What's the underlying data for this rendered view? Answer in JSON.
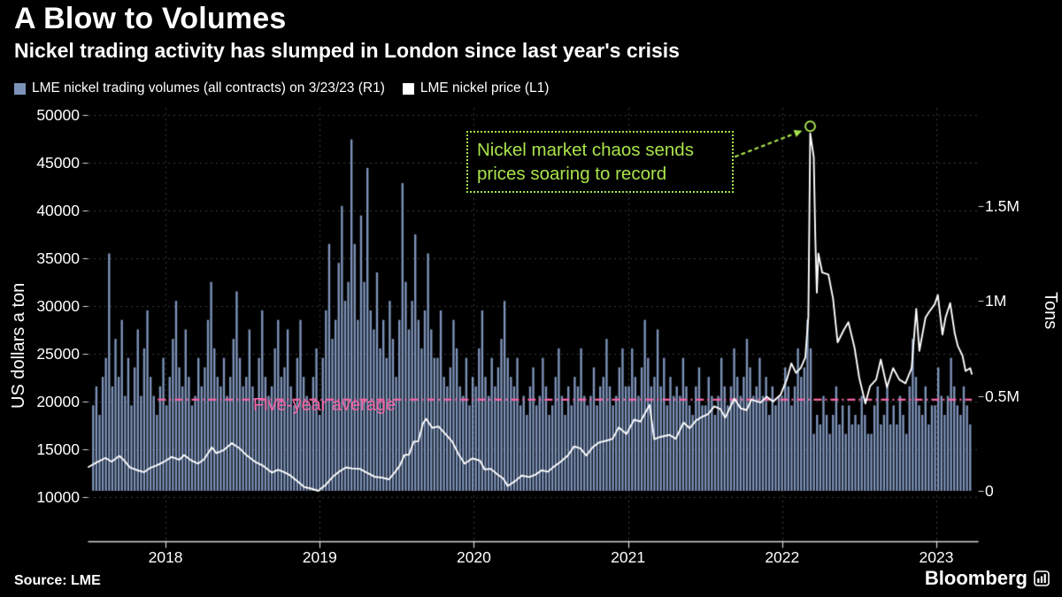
{
  "page": {
    "title": "A Blow to Volumes",
    "subtitle": "Nickel trading activity has slumped in London since last year's crisis",
    "source": "Source: LME",
    "brand": "Bloomberg"
  },
  "legend": {
    "items": [
      {
        "label": "LME nickel trading volumes (all contracts) on 3/23/23 (R1)",
        "color": "#7C92B8"
      },
      {
        "label": "LME nickel price (L1)",
        "color": "#FFFFFF"
      }
    ]
  },
  "annotation": {
    "line1": "Nickel market chaos sends",
    "line2": "prices soaring to record"
  },
  "colors": {
    "background": "#000000",
    "bars": "#7C92B8",
    "price_line": "#FFFFFF",
    "grid": "#3B3B3B",
    "axis": "#D8D8D8",
    "text": "#FFFFFF",
    "pink": "#F565A5",
    "green": "#A9E34B"
  },
  "chart_data": {
    "type": "bar+line",
    "title": "A Blow to Volumes",
    "subtitle": "Nickel trading activity has slumped in London since last year's crisis",
    "left_axis": {
      "label": "US dollars a ton",
      "ticks": [
        10000,
        15000,
        20000,
        25000,
        30000,
        35000,
        40000,
        45000,
        50000
      ]
    },
    "right_axis": {
      "label": "Tons",
      "ticks_mtons": [
        0,
        0.5,
        1.0,
        1.5
      ],
      "tick_labels": [
        "0",
        "0.5M",
        "1M",
        "1.5M"
      ]
    },
    "x_axis": {
      "start": 2017.5,
      "end": 2023.27,
      "year_ticks": [
        2018,
        2019,
        2020,
        2021,
        2022,
        2023
      ]
    },
    "price_line": {
      "name": "LME nickel price (L1)",
      "axis": "left",
      "units": "US dollars a ton",
      "points": [
        [
          2017.5,
          13150
        ],
        [
          2017.55,
          13600
        ],
        [
          2017.61,
          14100
        ],
        [
          2017.65,
          13700
        ],
        [
          2017.7,
          14300
        ],
        [
          2017.73,
          13850
        ],
        [
          2017.77,
          13100
        ],
        [
          2017.81,
          12850
        ],
        [
          2017.86,
          12600
        ],
        [
          2017.9,
          13050
        ],
        [
          2017.94,
          13300
        ],
        [
          2017.99,
          13700
        ],
        [
          2018.04,
          14200
        ],
        [
          2018.09,
          13900
        ],
        [
          2018.12,
          14400
        ],
        [
          2018.17,
          13800
        ],
        [
          2018.21,
          13500
        ],
        [
          2018.25,
          13950
        ],
        [
          2018.3,
          15200
        ],
        [
          2018.33,
          14600
        ],
        [
          2018.38,
          14950
        ],
        [
          2018.43,
          15650
        ],
        [
          2018.48,
          15100
        ],
        [
          2018.52,
          14450
        ],
        [
          2018.58,
          13700
        ],
        [
          2018.63,
          13300
        ],
        [
          2018.69,
          12550
        ],
        [
          2018.73,
          12850
        ],
        [
          2018.77,
          12600
        ],
        [
          2018.81,
          12250
        ],
        [
          2018.86,
          11600
        ],
        [
          2018.9,
          11050
        ],
        [
          2018.94,
          10900
        ],
        [
          2018.99,
          10650
        ],
        [
          2019.04,
          11300
        ],
        [
          2019.09,
          12200
        ],
        [
          2019.13,
          12700
        ],
        [
          2019.17,
          13100
        ],
        [
          2019.21,
          13000
        ],
        [
          2019.26,
          12950
        ],
        [
          2019.3,
          12600
        ],
        [
          2019.36,
          12100
        ],
        [
          2019.4,
          12050
        ],
        [
          2019.45,
          11850
        ],
        [
          2019.49,
          12650
        ],
        [
          2019.52,
          13300
        ],
        [
          2019.55,
          14400
        ],
        [
          2019.58,
          14450
        ],
        [
          2019.61,
          15800
        ],
        [
          2019.64,
          15850
        ],
        [
          2019.67,
          17700
        ],
        [
          2019.69,
          18200
        ],
        [
          2019.73,
          17250
        ],
        [
          2019.77,
          17400
        ],
        [
          2019.81,
          16700
        ],
        [
          2019.86,
          15800
        ],
        [
          2019.9,
          14500
        ],
        [
          2019.94,
          13500
        ],
        [
          2019.99,
          14050
        ],
        [
          2020.04,
          13800
        ],
        [
          2020.07,
          12900
        ],
        [
          2020.11,
          12950
        ],
        [
          2020.15,
          12400
        ],
        [
          2020.19,
          11950
        ],
        [
          2020.22,
          11150
        ],
        [
          2020.27,
          11700
        ],
        [
          2020.31,
          12250
        ],
        [
          2020.36,
          12100
        ],
        [
          2020.4,
          12350
        ],
        [
          2020.44,
          12800
        ],
        [
          2020.48,
          12650
        ],
        [
          2020.52,
          13200
        ],
        [
          2020.56,
          13650
        ],
        [
          2020.61,
          14350
        ],
        [
          2020.65,
          15300
        ],
        [
          2020.69,
          15100
        ],
        [
          2020.73,
          14350
        ],
        [
          2020.77,
          15200
        ],
        [
          2020.81,
          15700
        ],
        [
          2020.86,
          15900
        ],
        [
          2020.9,
          16100
        ],
        [
          2020.94,
          17300
        ],
        [
          2020.99,
          16600
        ],
        [
          2021.04,
          18100
        ],
        [
          2021.08,
          17900
        ],
        [
          2021.14,
          19650
        ],
        [
          2021.17,
          16050
        ],
        [
          2021.21,
          16300
        ],
        [
          2021.27,
          16500
        ],
        [
          2021.31,
          16100
        ],
        [
          2021.36,
          17800
        ],
        [
          2021.4,
          17200
        ],
        [
          2021.44,
          18000
        ],
        [
          2021.48,
          18400
        ],
        [
          2021.52,
          18700
        ],
        [
          2021.56,
          19500
        ],
        [
          2021.6,
          19200
        ],
        [
          2021.63,
          18300
        ],
        [
          2021.69,
          20300
        ],
        [
          2021.73,
          19300
        ],
        [
          2021.77,
          19100
        ],
        [
          2021.8,
          20200
        ],
        [
          2021.86,
          19900
        ],
        [
          2021.9,
          20500
        ],
        [
          2021.94,
          20000
        ],
        [
          2021.99,
          20700
        ],
        [
          2022.03,
          22300
        ],
        [
          2022.06,
          24000
        ],
        [
          2022.09,
          23000
        ],
        [
          2022.12,
          23500
        ],
        [
          2022.15,
          24600
        ],
        [
          2022.17,
          28900
        ],
        [
          2022.182,
          48078
        ],
        [
          2022.205,
          45600
        ],
        [
          2022.215,
          37200
        ],
        [
          2022.225,
          31400
        ],
        [
          2022.235,
          35500
        ],
        [
          2022.26,
          33500
        ],
        [
          2022.3,
          33300
        ],
        [
          2022.33,
          30800
        ],
        [
          2022.36,
          26200
        ],
        [
          2022.4,
          27500
        ],
        [
          2022.43,
          28300
        ],
        [
          2022.47,
          25600
        ],
        [
          2022.5,
          22500
        ],
        [
          2022.54,
          19800
        ],
        [
          2022.57,
          21600
        ],
        [
          2022.61,
          22300
        ],
        [
          2022.64,
          24400
        ],
        [
          2022.68,
          21500
        ],
        [
          2022.72,
          23500
        ],
        [
          2022.76,
          22300
        ],
        [
          2022.8,
          21900
        ],
        [
          2022.84,
          23500
        ],
        [
          2022.87,
          29700
        ],
        [
          2022.89,
          25300
        ],
        [
          2022.93,
          28800
        ],
        [
          2022.95,
          29300
        ],
        [
          2022.99,
          30200
        ],
        [
          2023.01,
          31150
        ],
        [
          2023.04,
          27000
        ],
        [
          2023.06,
          28800
        ],
        [
          2023.09,
          30300
        ],
        [
          2023.12,
          27100
        ],
        [
          2023.14,
          25800
        ],
        [
          2023.17,
          24800
        ],
        [
          2023.19,
          23200
        ],
        [
          2023.22,
          23500
        ],
        [
          2023.23,
          22900
        ]
      ]
    },
    "volume_bars": {
      "name": "LME nickel trading volumes (all contracts) on 3/23/23 (R1)",
      "axis": "right",
      "units": "million tons",
      "t_start": 2017.52,
      "t_end": 2023.23,
      "mtons": [
        0.45,
        0.55,
        0.4,
        0.6,
        0.7,
        1.25,
        0.55,
        0.8,
        0.6,
        0.9,
        0.5,
        0.7,
        0.45,
        0.65,
        0.85,
        0.5,
        0.75,
        0.95,
        0.6,
        0.5,
        0.4,
        0.55,
        0.7,
        0.45,
        0.6,
        0.8,
        1.0,
        0.65,
        0.55,
        0.85,
        0.6,
        0.45,
        0.5,
        0.7,
        0.55,
        0.65,
        0.9,
        1.1,
        0.75,
        0.6,
        0.55,
        0.7,
        0.5,
        0.6,
        0.8,
        1.05,
        0.7,
        0.55,
        0.6,
        0.85,
        0.55,
        0.45,
        0.7,
        0.95,
        0.6,
        0.5,
        0.55,
        0.75,
        0.9,
        0.6,
        0.65,
        0.85,
        0.55,
        0.45,
        0.7,
        0.9,
        0.6,
        0.5,
        0.45,
        0.6,
        0.75,
        0.4,
        0.7,
        0.95,
        1.3,
        0.8,
        0.9,
        1.2,
        1.5,
        1.0,
        1.1,
        1.85,
        1.3,
        0.9,
        1.45,
        1.1,
        1.7,
        0.95,
        0.85,
        1.15,
        0.75,
        0.9,
        0.7,
        1.0,
        0.8,
        0.6,
        0.9,
        1.62,
        1.1,
        0.85,
        1.0,
        1.35,
        0.9,
        0.75,
        0.95,
        1.25,
        0.85,
        0.7,
        0.7,
        0.95,
        0.6,
        0.55,
        0.65,
        0.9,
        0.75,
        0.55,
        0.5,
        0.7,
        0.45,
        0.6,
        0.55,
        0.75,
        0.95,
        0.6,
        0.5,
        0.7,
        0.55,
        0.65,
        0.8,
        1.0,
        0.7,
        0.6,
        0.55,
        0.7,
        0.45,
        0.5,
        0.4,
        0.55,
        0.65,
        0.45,
        0.5,
        0.7,
        0.55,
        0.4,
        0.45,
        0.6,
        0.75,
        0.5,
        0.4,
        0.55,
        0.45,
        0.6,
        0.55,
        0.75,
        0.5,
        0.45,
        0.5,
        0.65,
        0.45,
        0.55,
        0.6,
        0.8,
        0.55,
        0.45,
        0.5,
        0.65,
        0.75,
        0.55,
        0.55,
        0.75,
        0.6,
        0.5,
        0.65,
        0.9,
        0.7,
        0.55,
        0.6,
        0.85,
        0.55,
        0.7,
        0.45,
        0.6,
        0.5,
        0.55,
        0.5,
        0.7,
        0.55,
        0.45,
        0.4,
        0.55,
        0.65,
        0.45,
        0.45,
        0.6,
        0.5,
        0.4,
        0.5,
        0.7,
        0.55,
        0.45,
        0.55,
        0.75,
        0.6,
        0.5,
        0.6,
        0.8,
        0.65,
        0.5,
        0.55,
        0.7,
        0.5,
        0.6,
        0.4,
        0.55,
        0.45,
        0.5,
        0.5,
        0.65,
        0.55,
        0.45,
        0.55,
        0.75,
        0.6,
        0.65,
        0.9,
        0.75,
        0.3,
        0.4,
        0.35,
        0.5,
        0.4,
        0.3,
        0.4,
        0.55,
        0.35,
        0.45,
        0.3,
        0.45,
        0.35,
        0.4,
        0.35,
        0.5,
        0.4,
        0.3,
        0.3,
        0.45,
        0.55,
        0.35,
        0.4,
        0.55,
        0.35,
        0.45,
        0.35,
        0.5,
        0.4,
        0.3,
        0.55,
        0.8,
        0.6,
        0.45,
        0.4,
        0.55,
        0.35,
        0.45,
        0.45,
        0.65,
        0.5,
        0.4,
        0.5,
        0.7,
        0.55,
        0.45,
        0.4,
        0.55,
        0.45,
        0.35
      ]
    },
    "five_year_average": {
      "label": "Five-year average",
      "axis": "right",
      "value_mtons": 0.48,
      "t_start": 2017.95,
      "t_end": 2023.23
    },
    "annotation": {
      "text": "Nickel market chaos sends prices soaring to record",
      "target_t": 2022.182,
      "target_value_usd": 48078,
      "marker": "circle"
    }
  }
}
